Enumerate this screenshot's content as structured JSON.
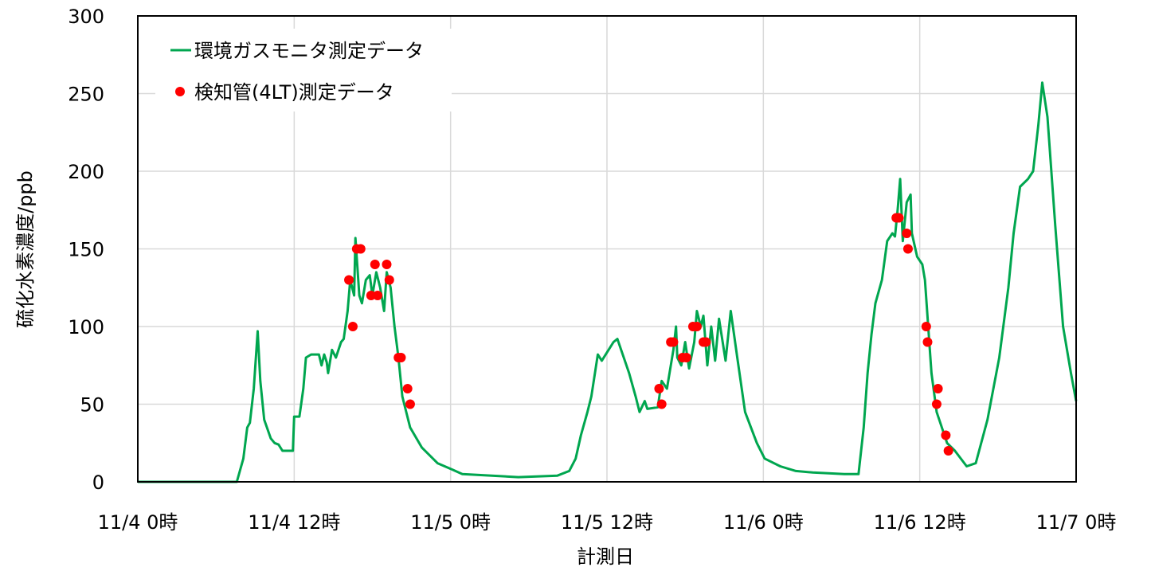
{
  "chart_data": {
    "type": "line",
    "title": "",
    "xlabel": "計測日",
    "ylabel": "硫化水素濃度/ppb",
    "xlim_hours": [
      0,
      72
    ],
    "ylim": [
      0,
      300
    ],
    "yticks": [
      0,
      50,
      100,
      150,
      200,
      250,
      300
    ],
    "xticks": [
      {
        "hour": 0,
        "label": "11/4 0時"
      },
      {
        "hour": 12,
        "label": "11/4 12時"
      },
      {
        "hour": 24,
        "label": "11/5 0時"
      },
      {
        "hour": 36,
        "label": "11/5 12時"
      },
      {
        "hour": 48,
        "label": "11/6 0時"
      },
      {
        "hour": 60,
        "label": "11/6 12時"
      },
      {
        "hour": 72,
        "label": "11/7 0時"
      }
    ],
    "grid": true,
    "legend_position": "top-left",
    "colors": {
      "monitor": "#00a64f",
      "tube": "#ff0000"
    },
    "series": [
      {
        "name": "環境ガスモニタ測定データ",
        "kind": "line",
        "points": [
          [
            0,
            0
          ],
          [
            7.6,
            0
          ],
          [
            8.1,
            15
          ],
          [
            8.4,
            35
          ],
          [
            8.6,
            38
          ],
          [
            8.9,
            60
          ],
          [
            9.2,
            97
          ],
          [
            9.4,
            65
          ],
          [
            9.7,
            40
          ],
          [
            10.2,
            28
          ],
          [
            10.5,
            25
          ],
          [
            10.8,
            24
          ],
          [
            11.1,
            20
          ],
          [
            11.9,
            20
          ],
          [
            12.0,
            42
          ],
          [
            12.4,
            42
          ],
          [
            12.7,
            60
          ],
          [
            12.9,
            80
          ],
          [
            13.3,
            82
          ],
          [
            13.9,
            82
          ],
          [
            14.1,
            75
          ],
          [
            14.3,
            82
          ],
          [
            14.5,
            77
          ],
          [
            14.6,
            70
          ],
          [
            14.9,
            85
          ],
          [
            15.2,
            80
          ],
          [
            15.6,
            90
          ],
          [
            15.8,
            92
          ],
          [
            16.1,
            110
          ],
          [
            16.3,
            130
          ],
          [
            16.6,
            120
          ],
          [
            16.7,
            157
          ],
          [
            17.0,
            120
          ],
          [
            17.2,
            115
          ],
          [
            17.5,
            130
          ],
          [
            17.8,
            133
          ],
          [
            18.0,
            120
          ],
          [
            18.3,
            135
          ],
          [
            18.6,
            125
          ],
          [
            18.9,
            110
          ],
          [
            19.1,
            135
          ],
          [
            19.4,
            125
          ],
          [
            19.7,
            100
          ],
          [
            20.0,
            80
          ],
          [
            20.3,
            55
          ],
          [
            20.9,
            35
          ],
          [
            21.8,
            22
          ],
          [
            23.0,
            12
          ],
          [
            24.1,
            8
          ],
          [
            24.9,
            5
          ],
          [
            29.2,
            3
          ],
          [
            32.2,
            4
          ],
          [
            33.1,
            7
          ],
          [
            33.6,
            15
          ],
          [
            34.0,
            30
          ],
          [
            34.5,
            45
          ],
          [
            34.8,
            55
          ],
          [
            35.3,
            82
          ],
          [
            35.6,
            78
          ],
          [
            36.5,
            90
          ],
          [
            36.8,
            92
          ],
          [
            37.7,
            70
          ],
          [
            38.2,
            55
          ],
          [
            38.5,
            45
          ],
          [
            38.9,
            52
          ],
          [
            39.1,
            47
          ],
          [
            39.9,
            48
          ],
          [
            40.2,
            65
          ],
          [
            40.6,
            60
          ],
          [
            41.1,
            85
          ],
          [
            41.3,
            100
          ],
          [
            41.4,
            80
          ],
          [
            41.7,
            75
          ],
          [
            42.0,
            90
          ],
          [
            42.3,
            73
          ],
          [
            42.7,
            90
          ],
          [
            42.9,
            110
          ],
          [
            43.2,
            100
          ],
          [
            43.4,
            107
          ],
          [
            43.7,
            75
          ],
          [
            44.0,
            100
          ],
          [
            44.3,
            78
          ],
          [
            44.6,
            105
          ],
          [
            45.1,
            78
          ],
          [
            45.5,
            110
          ],
          [
            46.0,
            80
          ],
          [
            46.6,
            45
          ],
          [
            47.5,
            25
          ],
          [
            48.1,
            15
          ],
          [
            49.3,
            10
          ],
          [
            50.5,
            7
          ],
          [
            51.8,
            6
          ],
          [
            54.2,
            5
          ],
          [
            55.3,
            5
          ],
          [
            55.7,
            35
          ],
          [
            56.0,
            70
          ],
          [
            56.3,
            95
          ],
          [
            56.6,
            115
          ],
          [
            57.1,
            130
          ],
          [
            57.5,
            155
          ],
          [
            57.9,
            160
          ],
          [
            58.1,
            158
          ],
          [
            58.3,
            175
          ],
          [
            58.5,
            195
          ],
          [
            58.7,
            155
          ],
          [
            59.0,
            180
          ],
          [
            59.3,
            185
          ],
          [
            59.4,
            160
          ],
          [
            59.8,
            145
          ],
          [
            60.2,
            140
          ],
          [
            60.4,
            130
          ],
          [
            60.9,
            70
          ],
          [
            61.3,
            45
          ],
          [
            62.1,
            25
          ],
          [
            62.7,
            20
          ],
          [
            63.6,
            10
          ],
          [
            64.3,
            12
          ],
          [
            65.2,
            40
          ],
          [
            66.1,
            80
          ],
          [
            66.8,
            125
          ],
          [
            67.2,
            160
          ],
          [
            67.7,
            190
          ],
          [
            68.3,
            195
          ],
          [
            68.7,
            200
          ],
          [
            69.1,
            230
          ],
          [
            69.4,
            257
          ],
          [
            69.8,
            235
          ],
          [
            70.4,
            165
          ],
          [
            71.0,
            100
          ],
          [
            71.6,
            70
          ],
          [
            72,
            52
          ]
        ]
      },
      {
        "name": "検知管(4LT)測定データ",
        "kind": "scatter",
        "points": [
          [
            16.2,
            130
          ],
          [
            16.5,
            100
          ],
          [
            16.8,
            150
          ],
          [
            17.1,
            150
          ],
          [
            17.9,
            120
          ],
          [
            18.2,
            140
          ],
          [
            18.4,
            120
          ],
          [
            19.1,
            140
          ],
          [
            19.3,
            130
          ],
          [
            20.0,
            80
          ],
          [
            20.2,
            80
          ],
          [
            20.7,
            60
          ],
          [
            20.9,
            50
          ],
          [
            40.0,
            60
          ],
          [
            40.2,
            50
          ],
          [
            40.9,
            90
          ],
          [
            41.1,
            90
          ],
          [
            41.8,
            80
          ],
          [
            42.1,
            80
          ],
          [
            42.6,
            100
          ],
          [
            42.9,
            100
          ],
          [
            43.4,
            90
          ],
          [
            43.6,
            90
          ],
          [
            58.2,
            170
          ],
          [
            58.4,
            170
          ],
          [
            59.0,
            160
          ],
          [
            59.1,
            150
          ],
          [
            60.5,
            100
          ],
          [
            60.6,
            90
          ],
          [
            61.3,
            50
          ],
          [
            61.4,
            60
          ],
          [
            62.0,
            30
          ],
          [
            62.2,
            20
          ]
        ]
      }
    ]
  }
}
